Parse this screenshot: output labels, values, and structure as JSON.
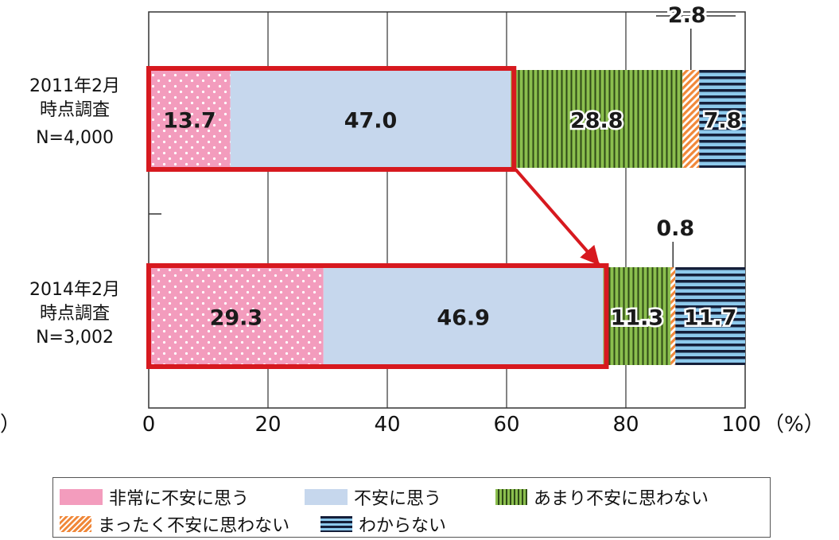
{
  "chart_data": {
    "type": "bar",
    "orientation": "horizontal",
    "stacked": true,
    "xlim": [
      0,
      100
    ],
    "x_ticks": [
      "0",
      "20",
      "40",
      "60",
      "80",
      "100"
    ],
    "x_unit": "（%）",
    "left_marker": "）",
    "categories": [
      {
        "lines": [
          "2011年2月",
          "時点調査",
          "N=4,000"
        ]
      },
      {
        "lines": [
          "2014年2月",
          "時点調査",
          "N=3,002"
        ]
      }
    ],
    "series": [
      {
        "name": "非常に不安に思う",
        "key": "s0",
        "values": [
          13.7,
          29.3
        ],
        "labels": [
          "13.7",
          "29.3"
        ]
      },
      {
        "name": "不安に思う",
        "key": "s1",
        "values": [
          47.0,
          46.9
        ],
        "labels": [
          "47.0",
          "46.9"
        ]
      },
      {
        "name": "あまり不安に思わない",
        "key": "s2",
        "values": [
          28.8,
          11.3
        ],
        "labels": [
          "28.8",
          "11.3"
        ]
      },
      {
        "name": "まったく不安に思わない",
        "key": "s3",
        "values": [
          2.8,
          0.8
        ],
        "labels": [
          "2.8",
          "0.8"
        ]
      },
      {
        "name": "わからない",
        "key": "s4",
        "values": [
          7.8,
          11.7
        ],
        "labels": [
          "7.8",
          "11.7"
        ]
      }
    ],
    "highlight": {
      "series": [
        "非常に不安に思う",
        "不安に思う"
      ],
      "color": "#d7191f"
    },
    "colors": {
      "s0": "#f39cbd",
      "s1": "#c6d7ed",
      "s2": "#8bbf4e",
      "s3": "#f0883a",
      "s4": "#8dc9ec",
      "highlight": "#d7191f",
      "grid": "#333333"
    }
  }
}
